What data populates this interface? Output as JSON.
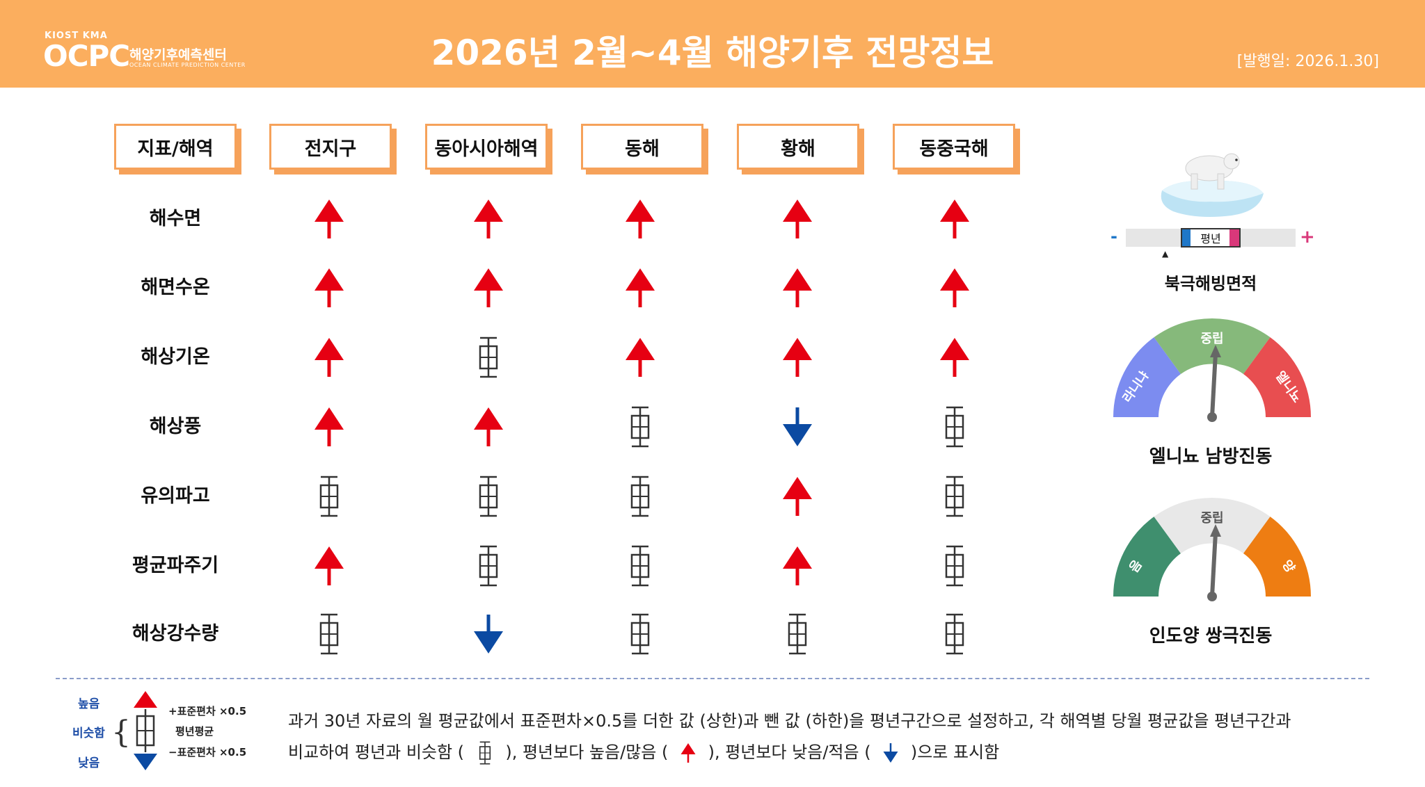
{
  "header": {
    "logo_top": "KIOST  KMA",
    "logo_main": "OCPC",
    "logo_kr": "해양기후예측센터",
    "logo_en": "OCEAN CLIMATE PREDICTION CENTER",
    "title": "2026년 2월~4월 해양기후 전망정보",
    "issued": "[발행일: 2026.1.30]"
  },
  "table": {
    "corner": "지표/해역",
    "columns": [
      "전지구",
      "동아시아해역",
      "동해",
      "황해",
      "동중국해"
    ],
    "rows": [
      {
        "label": "해수면",
        "values": [
          "up",
          "up",
          "up",
          "up",
          "up"
        ]
      },
      {
        "label": "해면수온",
        "values": [
          "up",
          "up",
          "up",
          "up",
          "up"
        ]
      },
      {
        "label": "해상기온",
        "values": [
          "up",
          "normal",
          "up",
          "up",
          "up"
        ]
      },
      {
        "label": "해상풍",
        "values": [
          "up",
          "up",
          "normal",
          "down",
          "normal"
        ]
      },
      {
        "label": "유의파고",
        "values": [
          "normal",
          "normal",
          "normal",
          "up",
          "normal"
        ]
      },
      {
        "label": "평균파주기",
        "values": [
          "up",
          "normal",
          "normal",
          "up",
          "normal"
        ]
      },
      {
        "label": "해상강수량",
        "values": [
          "normal",
          "down",
          "normal",
          "normal",
          "normal"
        ]
      }
    ]
  },
  "sidebar": {
    "sea_ice": {
      "label": "북극해빙면적",
      "avg_label": "평년",
      "minus": "-",
      "plus": "+",
      "position": "below-normal"
    },
    "enso": {
      "label": "엘니뇨 남방진동",
      "left": "라니냐",
      "center": "중립",
      "right": "엘니뇨",
      "state": "중립",
      "colors": {
        "left": "#7c8cf0",
        "center": "#86b97b",
        "right": "#e84e50"
      }
    },
    "iod": {
      "label": "인도양 쌍극진동",
      "left": "음",
      "center": "중립",
      "right": "양",
      "state": "중립",
      "colors": {
        "left": "#3f8f6e",
        "center": "#e8e8e8",
        "right": "#ee7d12"
      }
    }
  },
  "legend": {
    "high": "높음",
    "similar": "비슷함",
    "low": "낮음",
    "upper": "+표준편차 ×0.5",
    "mean": "평년평균",
    "lower": "−표준편차 ×0.5",
    "desc1": "과거 30년 자료의 월 평균값에서 표준편차×0.5를   더한 값 (상한)과 뺀 값 (하한)을 평년구간으로   설정하고, 각 해역별  당월 평균값을 평년구간과",
    "desc2_a": "비교하여 평년과 비슷함 (",
    "desc2_b": "),   평년보다  높음/많음 (",
    "desc2_c": "), 평년보다  낮음/적음 (",
    "desc2_d": ")으로  표시함"
  },
  "colors": {
    "header": "#fbae5e",
    "up": "#e60012",
    "down": "#0b4aa2",
    "border": "#f6a25a"
  }
}
